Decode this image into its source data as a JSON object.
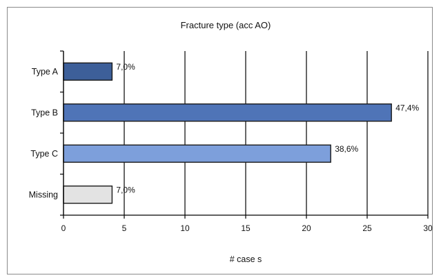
{
  "chart_data": {
    "type": "bar",
    "orientation": "horizontal",
    "title": "Fracture type (acc AO)",
    "xlabel": "# case s",
    "ylabel": "",
    "categories": [
      "Type A",
      "Type B",
      "Type C",
      "Missing"
    ],
    "values": [
      4,
      27,
      22,
      4
    ],
    "data_labels": [
      "7,0%",
      "47,4%",
      "38,6%",
      "7,0%"
    ],
    "bar_colors": [
      "#3D5F99",
      "#4F74B7",
      "#7D9FDB",
      "#E3E3E3"
    ],
    "xlim": [
      0,
      30
    ],
    "xticks": [
      0,
      5,
      10,
      15,
      20,
      25,
      30
    ],
    "grid": "vertical",
    "legend": "none"
  }
}
